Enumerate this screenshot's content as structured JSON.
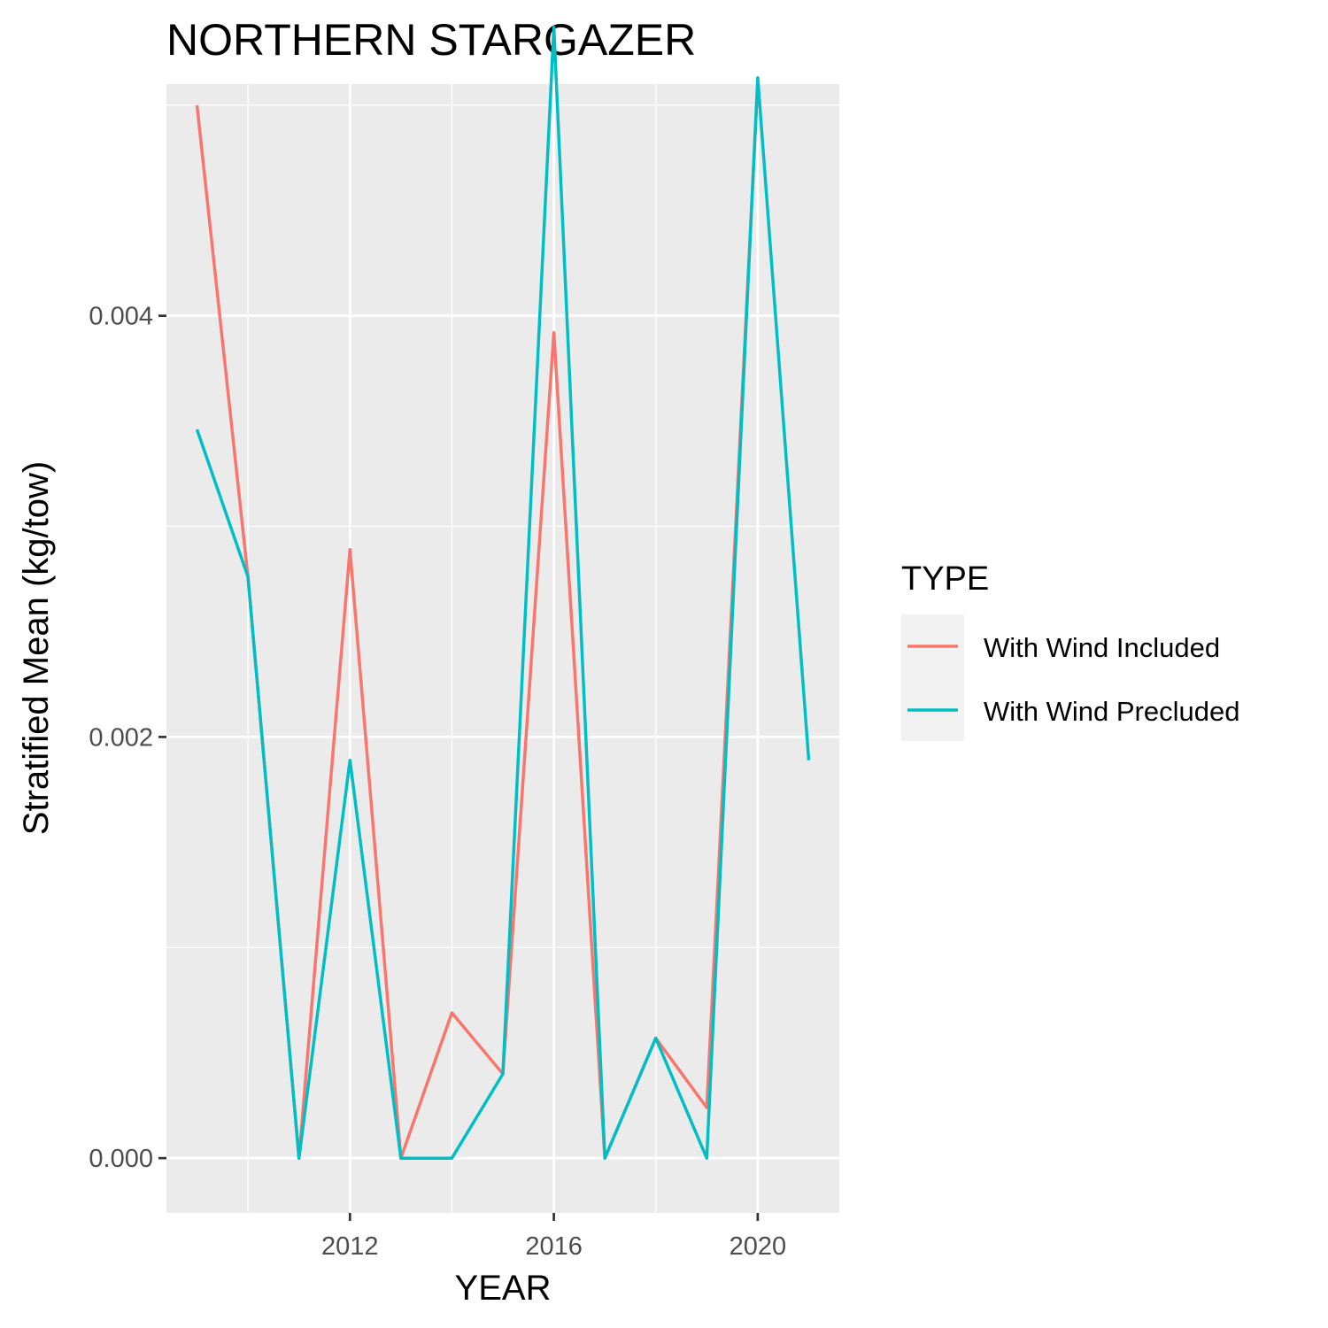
{
  "chart_data": {
    "type": "line",
    "title": "NORTHERN STARGAZER",
    "xlabel": "YEAR",
    "ylabel": "Stratified Mean (kg/tow)",
    "xlim": [
      2008.4,
      2021.6
    ],
    "ylim": [
      -0.00026,
      0.0051
    ],
    "x_ticks": [
      2012,
      2016,
      2020
    ],
    "x_tick_labels": [
      "2012",
      "2016",
      "2020"
    ],
    "x_minor_ticks": [
      2010,
      2014,
      2018
    ],
    "y_ticks": [
      0.0,
      0.002,
      0.004
    ],
    "y_tick_labels": [
      "0.000",
      "0.002",
      "0.004"
    ],
    "y_minor_ticks": [
      0.001,
      0.003,
      0.005
    ],
    "grid": true,
    "legend": {
      "title": "TYPE",
      "placement": "right"
    },
    "series": [
      {
        "name": "With Wind Included",
        "color": "#F8766D",
        "x": [
          2009,
          2010,
          2011,
          2012,
          2013,
          2014,
          2015,
          2016,
          2017,
          2018,
          2019,
          2020
        ],
        "y": [
          0.005,
          0.00276,
          0.0,
          0.00289,
          0.0,
          0.00069,
          0.0004,
          0.00392,
          0.0,
          0.00057,
          0.00024,
          0.00511
        ]
      },
      {
        "name": "With Wind Precluded",
        "color": "#00BFC4",
        "x": [
          2009,
          2010,
          2011,
          2012,
          2013,
          2014,
          2015,
          2016,
          2017,
          2018,
          2019,
          2020,
          2021
        ],
        "y": [
          0.00346,
          0.00276,
          0.0,
          0.00189,
          0.0,
          0.0,
          0.0004,
          0.00537,
          0.0,
          0.00057,
          0.0,
          0.00513,
          0.00189
        ]
      }
    ]
  }
}
